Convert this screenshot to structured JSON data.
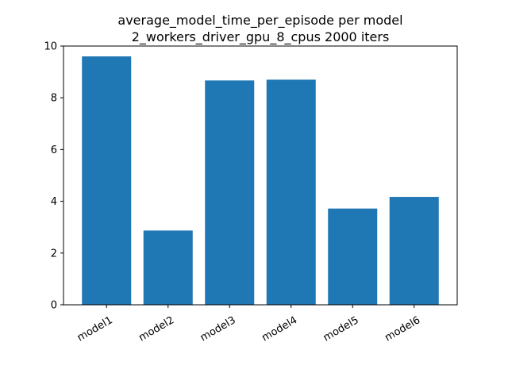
{
  "chart_data": {
    "type": "bar",
    "title": "average_model_time_per_episode per model",
    "subtitle": "2_workers_driver_gpu_8_cpus 2000 iters",
    "xlabel": "",
    "ylabel": "",
    "categories": [
      "model1",
      "model2",
      "model3",
      "model4",
      "model5",
      "model6"
    ],
    "values": [
      9.6,
      2.87,
      8.67,
      8.7,
      3.72,
      4.17
    ],
    "ylim": [
      0,
      10
    ],
    "yticks": [
      0,
      2,
      4,
      6,
      8,
      10
    ],
    "grid": false,
    "bar_color": "#1f77b4"
  }
}
